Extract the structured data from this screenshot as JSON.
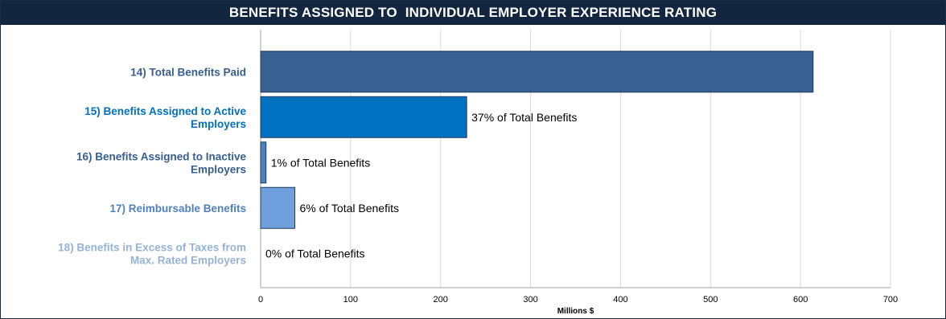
{
  "chart_data": {
    "type": "bar",
    "orientation": "horizontal",
    "title": "BENEFITS ASSIGNED TO  INDIVIDUAL EMPLOYER EXPERIENCE RATING",
    "xlabel": "Millions $",
    "ylabel": "",
    "xlim": [
      0,
      700
    ],
    "xticks": [
      0,
      100,
      200,
      300,
      400,
      500,
      600,
      700
    ],
    "grid": true,
    "legend": "none",
    "categories": [
      {
        "label_lines": [
          "14) Total Benefits Paid"
        ],
        "value": 614,
        "data_label": "",
        "color": "#386192",
        "label_color": "#365f91"
      },
      {
        "label_lines": [
          "15) Benefits Assigned to Active",
          "Employers"
        ],
        "value": 229,
        "data_label": "37% of Total Benefits",
        "color": "#0070c0",
        "label_color": "#0070c0"
      },
      {
        "label_lines": [
          "16)  Benefits Assigned to Inactive",
          "Employers"
        ],
        "value": 6,
        "data_label": "1% of Total Benefits",
        "color": "#4f81bd",
        "label_color": "#365f91"
      },
      {
        "label_lines": [
          "17) Reimbursable Benefits"
        ],
        "value": 38,
        "data_label": "6% of Total Benefits",
        "color": "#6f9fdc",
        "label_color": "#4f81bd"
      },
      {
        "label_lines": [
          "18) Benefits in Excess of Taxes from",
          "Max. Rated Employers"
        ],
        "value": 0,
        "data_label": "0% of Total Benefits",
        "color": "#95b3d7",
        "label_color": "#95b3d7"
      }
    ]
  }
}
